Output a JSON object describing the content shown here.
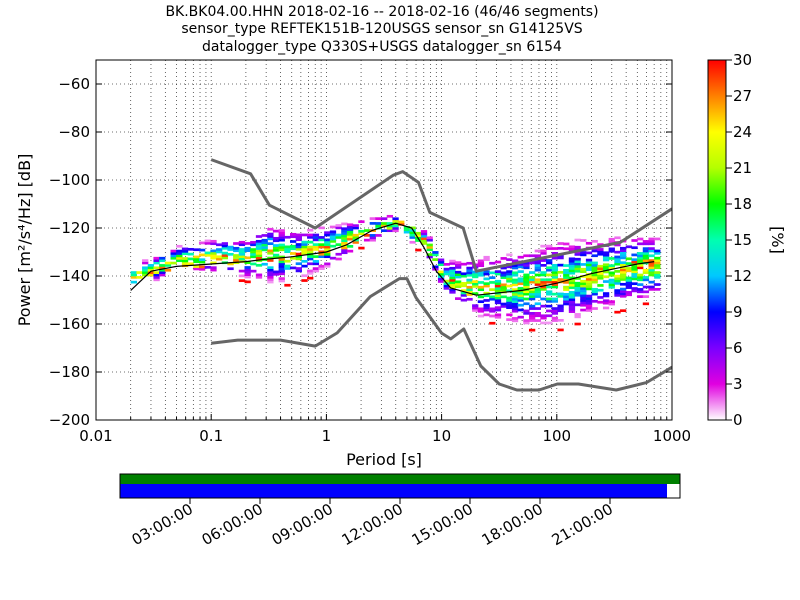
{
  "title_lines": [
    "BK.BK04.00.HHN   2018-02-16 -- 2018-02-16  (46/46 segments)",
    "sensor_type REFTEK151B-120USGS sensor_sn G14125VS",
    "datalogger_type Q330S+USGS datalogger_sn 6154"
  ],
  "chart_data": {
    "type": "heatmap",
    "xlabel": "Period [s]",
    "ylabel": "Power [m²/s⁴/Hz] [dB]",
    "xscale": "log",
    "xlim": [
      0.01,
      1000
    ],
    "ylim": [
      -200,
      -50
    ],
    "x_ticks": [
      0.01,
      0.1,
      1,
      10,
      100,
      1000
    ],
    "x_tick_labels": [
      "0.01",
      "0.1",
      "1",
      "10",
      "100",
      "1000"
    ],
    "y_ticks": [
      -200,
      -180,
      -160,
      -140,
      -120,
      -100,
      -80,
      -60
    ],
    "y_tick_labels": [
      "−200",
      "−180",
      "−160",
      "−140",
      "−120",
      "−100",
      "−80",
      "−60"
    ],
    "colorbar": {
      "label": "[%]",
      "min": 0,
      "max": 30,
      "ticks": [
        0,
        3,
        6,
        9,
        12,
        15,
        18,
        21,
        24,
        27,
        30
      ],
      "tick_labels": [
        "0",
        "3",
        "6",
        "9",
        "12",
        "15",
        "18",
        "21",
        "24",
        "27",
        "30"
      ]
    },
    "noise_model_high": [
      [
        0.1,
        -91.5
      ],
      [
        0.22,
        -97.4
      ],
      [
        0.32,
        -110.5
      ],
      [
        0.8,
        -120
      ],
      [
        3.8,
        -98
      ],
      [
        4.6,
        -96.5
      ],
      [
        6.3,
        -101
      ],
      [
        7.9,
        -113.5
      ],
      [
        15.4,
        -120
      ],
      [
        20,
        -138
      ],
      [
        354.8,
        -126
      ],
      [
        1000,
        -112
      ]
    ],
    "noise_model_low": [
      [
        0.1,
        -168
      ],
      [
        0.17,
        -166.7
      ],
      [
        0.4,
        -166.7
      ],
      [
        0.8,
        -169.2
      ],
      [
        1.24,
        -163.7
      ],
      [
        2.4,
        -148.6
      ],
      [
        4.3,
        -141.1
      ],
      [
        5,
        -141.1
      ],
      [
        6,
        -149
      ],
      [
        10,
        -163.8
      ],
      [
        12,
        -166.2
      ],
      [
        15.6,
        -162.1
      ],
      [
        21.9,
        -177.5
      ],
      [
        31.6,
        -185
      ],
      [
        45,
        -187.5
      ],
      [
        70,
        -187.5
      ],
      [
        101,
        -185
      ],
      [
        154,
        -185
      ],
      [
        328,
        -187.5
      ],
      [
        600,
        -184.4
      ],
      [
        1000,
        -178
      ]
    ],
    "mode_curve": [
      [
        0.02,
        -146
      ],
      [
        0.03,
        -138
      ],
      [
        0.05,
        -136
      ],
      [
        0.1,
        -135
      ],
      [
        0.2,
        -134
      ],
      [
        0.3,
        -133
      ],
      [
        0.5,
        -132
      ],
      [
        1,
        -130
      ],
      [
        1.5,
        -127
      ],
      [
        2.5,
        -121
      ],
      [
        4,
        -118
      ],
      [
        5.5,
        -120
      ],
      [
        7,
        -128
      ],
      [
        9,
        -138
      ],
      [
        12,
        -145
      ],
      [
        20,
        -148
      ],
      [
        50,
        -146
      ],
      [
        100,
        -143
      ],
      [
        200,
        -139
      ],
      [
        500,
        -135
      ],
      [
        700,
        -134
      ]
    ],
    "psd_spread": [
      [
        0.02,
        -141,
        6
      ],
      [
        0.05,
        -133,
        6
      ],
      [
        0.1,
        -132,
        8
      ],
      [
        0.2,
        -133,
        10
      ],
      [
        0.3,
        -131,
        14
      ],
      [
        0.5,
        -132,
        12
      ],
      [
        1,
        -128,
        10
      ],
      [
        2,
        -122,
        6
      ],
      [
        4,
        -118,
        4
      ],
      [
        7,
        -127,
        6
      ],
      [
        10,
        -141,
        8
      ],
      [
        20,
        -145,
        14
      ],
      [
        50,
        -145,
        18
      ],
      [
        100,
        -143,
        20
      ],
      [
        200,
        -140,
        18
      ],
      [
        500,
        -137,
        16
      ],
      [
        700,
        -136,
        14
      ]
    ]
  },
  "timeline": {
    "tick_labels": [
      "03:00:00",
      "06:00:00",
      "09:00:00",
      "12:00:00",
      "15:00:00",
      "18:00:00",
      "21:00:00"
    ],
    "coverage_color": "#008000",
    "gap_color": "#0000ff"
  }
}
